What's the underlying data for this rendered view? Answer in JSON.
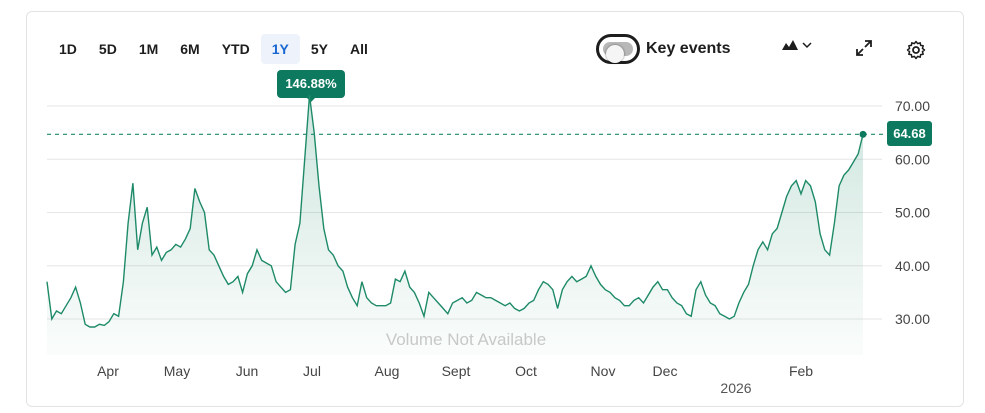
{
  "ranges": [
    "1D",
    "5D",
    "1M",
    "6M",
    "YTD",
    "1Y",
    "5Y",
    "All"
  ],
  "active_range": "1Y",
  "tooltip": {
    "text": "146.88%"
  },
  "key_events": {
    "label": "Key events",
    "enabled": false
  },
  "chart_type": {
    "icon": "mountain-chart-icon",
    "caret": "⌄"
  },
  "toolbar": {
    "expand_icon": "expand-icon",
    "settings_icon": "gear-icon"
  },
  "price_badge": "64.68",
  "volume_note": "Volume Not Available",
  "colors": {
    "line": "#1e8a68",
    "accent": "#0d7a5f",
    "active_range": "#1967d2"
  },
  "chart_data": {
    "type": "area",
    "y_ticks": [
      "70.00",
      "60.00",
      "50.00",
      "40.00",
      "30.00"
    ],
    "ylim": [
      27,
      73
    ],
    "x_labels": [
      "Apr",
      "May",
      "Jun",
      "Jul",
      "Aug",
      "Sept",
      "Oct",
      "Nov",
      "Dec",
      "Feb"
    ],
    "year_label": "2026",
    "reference_value": 64.68,
    "grid": true,
    "series": [
      {
        "values": [
          37,
          30,
          31.5,
          31,
          32.5,
          34,
          36,
          33,
          29,
          28.5,
          28.5,
          29,
          28.8,
          29.5,
          31,
          30.5,
          37,
          48,
          55.5,
          43,
          48,
          51,
          42,
          43.5,
          41,
          42.5,
          43,
          44,
          43.5,
          45,
          47,
          54.5,
          52,
          50,
          43,
          42,
          40,
          38,
          36.5,
          37,
          38,
          35,
          38.5,
          40,
          43,
          41,
          40.5,
          40,
          37,
          36,
          35,
          35.5,
          44,
          48,
          60,
          72,
          65,
          55,
          47,
          43,
          42,
          40,
          39,
          36,
          34,
          32.5,
          37,
          34,
          33,
          32.5,
          32.5,
          32.5,
          33,
          37.5,
          37,
          39,
          36,
          35,
          33,
          30.5,
          35,
          34,
          33,
          32,
          31,
          33,
          33.5,
          34,
          33,
          33.5,
          35,
          34.5,
          34,
          34,
          33.5,
          33,
          32.5,
          33,
          32,
          31.5,
          32,
          33,
          33.5,
          35.5,
          37,
          36.5,
          35.5,
          32,
          35.5,
          37,
          38,
          37,
          37.5,
          38,
          40,
          38,
          36.5,
          35.5,
          35,
          34,
          33.5,
          32.5,
          32.5,
          33.5,
          34,
          33,
          34.5,
          36,
          37,
          35.5,
          35.5,
          34,
          33,
          32.5,
          31,
          30.5,
          35.5,
          37,
          34.5,
          33,
          32.5,
          31,
          30.5,
          30,
          30.5,
          33,
          35,
          36.5,
          40,
          43,
          44.5,
          43,
          46,
          47,
          50,
          53,
          55,
          56,
          53.5,
          56,
          55,
          52,
          46,
          43,
          42,
          48,
          55,
          57,
          58,
          59.5,
          61,
          64.68
        ]
      }
    ]
  }
}
